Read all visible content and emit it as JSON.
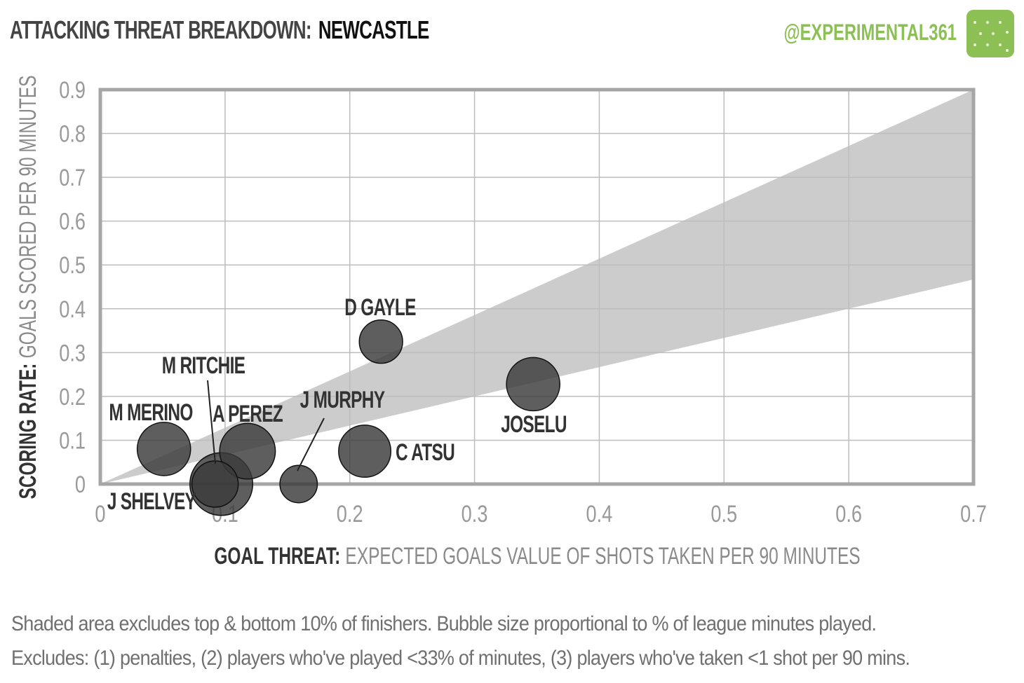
{
  "header": {
    "title_prefix": "ATTACKING THREAT BREAKDOWN:",
    "title_team": "NEWCASTLE",
    "handle": "@EXPERIMENTAL361",
    "logo_icon": "pitch-logo-icon"
  },
  "chart_data": {
    "type": "scatter",
    "bubble": true,
    "title": "ATTACKING THREAT BREAKDOWN: NEWCASTLE",
    "xlabel_bold": "GOAL THREAT:",
    "xlabel_rest": "EXPECTED GOALS VALUE OF SHOTS TAKEN PER 90 MINUTES",
    "ylabel_bold": "SCORING RATE:",
    "ylabel_rest": "GOALS SCORED PER 90 MINUTES",
    "xlim": [
      0,
      0.7
    ],
    "ylim": [
      0,
      0.9
    ],
    "x_ticks": [
      "0",
      "0.1",
      "0.2",
      "0.3",
      "0.4",
      "0.5",
      "0.6",
      "0.7"
    ],
    "y_ticks": [
      "0",
      "0.1",
      "0.2",
      "0.3",
      "0.4",
      "0.5",
      "0.6",
      "0.7",
      "0.8",
      "0.9"
    ],
    "grid": true,
    "shaded_band": {
      "upper_slope": 1.286,
      "lower_slope": 0.667
    },
    "colors": {
      "bubble": "#3a3a3a",
      "band": "#cccccc",
      "grid": "#bdbdbd",
      "frame": "#a6a6a6",
      "tick": "#9a9a9a",
      "label": "#333333",
      "accent": "#8cc055"
    },
    "points": [
      {
        "name": "M MERINO",
        "x": 0.051,
        "y": 0.08,
        "size": 0.62
      },
      {
        "name": "J SHELVEY",
        "x": 0.097,
        "y": 0.0,
        "size": 0.78
      },
      {
        "name": "M RITCHIE",
        "x": 0.092,
        "y": 0.0,
        "size": 0.5
      },
      {
        "name": "A PEREZ",
        "x": 0.118,
        "y": 0.075,
        "size": 0.66
      },
      {
        "name": "J MURPHY",
        "x": 0.159,
        "y": 0.0,
        "size": 0.35
      },
      {
        "name": "C ATSU",
        "x": 0.212,
        "y": 0.075,
        "size": 0.6
      },
      {
        "name": "D GAYLE",
        "x": 0.225,
        "y": 0.325,
        "size": 0.45
      },
      {
        "name": "JOSELU",
        "x": 0.347,
        "y": 0.228,
        "size": 0.62
      }
    ]
  },
  "footer": {
    "note1": "Shaded area excludes top & bottom 10% of finishers. Bubble size proportional to % of league minutes played.",
    "note2": "Excludes: (1) penalties, (2) players who've played <33% of minutes, (3) players who've taken <1 shot per 90 mins."
  }
}
